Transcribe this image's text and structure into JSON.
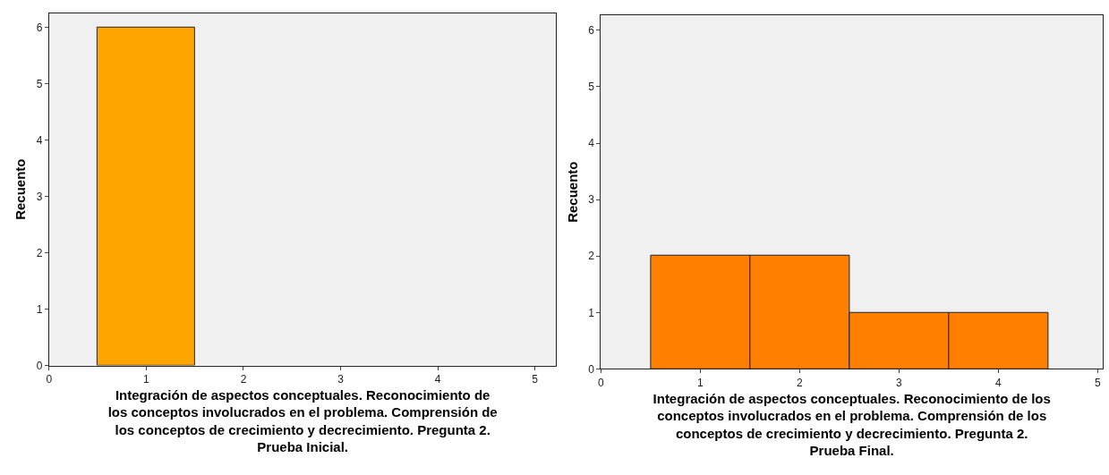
{
  "chart_data": [
    {
      "type": "histogram",
      "bins": [
        0.5,
        1.5
      ],
      "values": [
        6
      ],
      "color": "#ffa500",
      "xlabel": "Integración de aspectos conceptuales. Reconocimiento de\nlos conceptos involucrados en el problema. Comprensión de\nlos conceptos de crecimiento y decrecimiento. Pregunta 2.\nPrueba Inicial.",
      "ylabel": "Recuento",
      "xlim": [
        0,
        5.22
      ],
      "xticks": [
        0,
        1,
        2,
        3,
        4,
        5
      ],
      "ylim": [
        0,
        6.25
      ],
      "yticks": [
        0,
        1,
        2,
        3,
        4,
        5,
        6
      ],
      "grid": false
    },
    {
      "type": "histogram",
      "bins": [
        0.5,
        1.5,
        2.5,
        3.5,
        4.5
      ],
      "values": [
        2,
        2,
        1,
        1
      ],
      "color": "#ff8000",
      "xlabel": "Integración de aspectos conceptuales. Reconocimiento de los\nconceptos involucrados en el problema. Comprensión de los\nconceptos de crecimiento y decrecimiento. Pregunta 2.\nPrueba Final.",
      "ylabel": "Recuento",
      "xlim": [
        0,
        5.05
      ],
      "xticks": [
        0,
        1,
        2,
        3,
        4,
        5
      ],
      "ylim": [
        0,
        6.27
      ],
      "yticks": [
        0,
        1,
        2,
        3,
        4,
        5,
        6
      ],
      "grid": false
    }
  ]
}
